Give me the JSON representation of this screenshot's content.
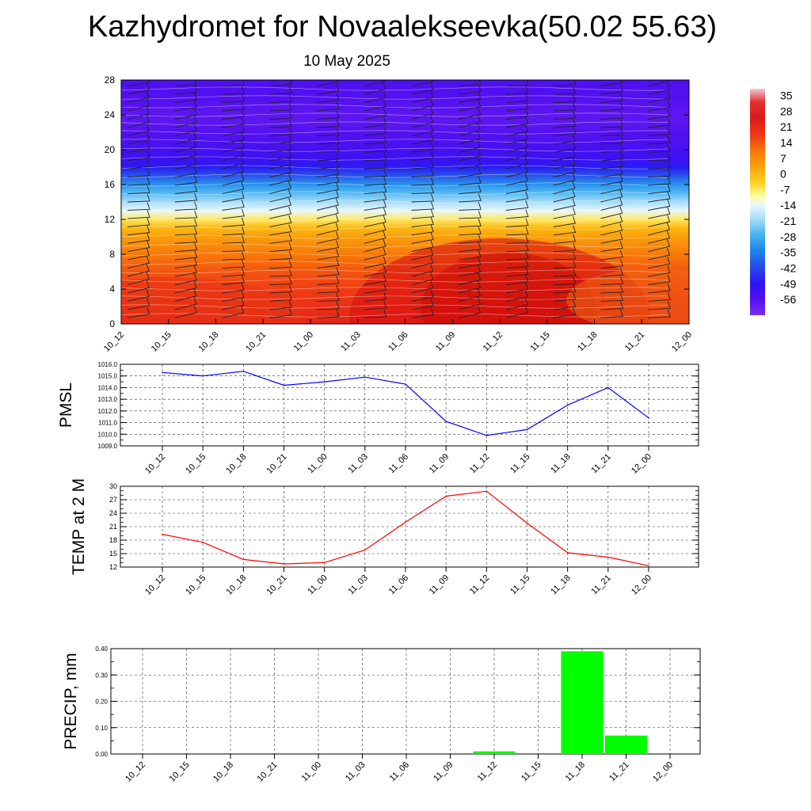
{
  "header": {
    "title": "Kazhydromet for Novaalekseevka(50.02 55.63)",
    "date": "10 May 2025"
  },
  "colors": {
    "pmsl_line": "#0000ff",
    "temp_line": "#ff0000",
    "precip_bar": "#00ff00",
    "grid": "#000000"
  },
  "chart_data": [
    {
      "id": "cross-section",
      "type": "heatmap",
      "title": "",
      "x": [
        "10_12",
        "10_15",
        "10_18",
        "10_21",
        "11_00",
        "11_03",
        "11_06",
        "11_09",
        "11_12",
        "11_15",
        "11_18",
        "11_21",
        "12_00"
      ],
      "ylim": [
        0,
        28
      ],
      "yticks": [
        0,
        4,
        8,
        12,
        16,
        20,
        24,
        28
      ],
      "colorbar_labels": [
        35,
        28,
        21,
        14,
        7,
        0,
        -7,
        -14,
        -21,
        -28,
        -35,
        -42,
        -49,
        -56
      ],
      "colorbar_range": [
        -63,
        38
      ],
      "colorbar_stops": [
        {
          "value": 38,
          "color": "#f0c8d8"
        },
        {
          "value": 32,
          "color": "#e43030"
        },
        {
          "value": 25,
          "color": "#d81a1a"
        },
        {
          "value": 17,
          "color": "#f03a14"
        },
        {
          "value": 10,
          "color": "#f87a0a"
        },
        {
          "value": 3,
          "color": "#fba40c"
        },
        {
          "value": -4,
          "color": "#fcd21e"
        },
        {
          "value": -10,
          "color": "#fefca8"
        },
        {
          "value": -14,
          "color": "#e9f7fc"
        },
        {
          "value": -20,
          "color": "#a8dcf8"
        },
        {
          "value": -27,
          "color": "#48b4f2"
        },
        {
          "value": -34,
          "color": "#1c86ea"
        },
        {
          "value": -41,
          "color": "#2a4cea"
        },
        {
          "value": -49,
          "color": "#2a14f4"
        },
        {
          "value": -56,
          "color": "#5410f0"
        },
        {
          "value": -63,
          "color": "#7a2cf0"
        }
      ]
    },
    {
      "id": "pmsl",
      "type": "line",
      "ylabel": "PMSL",
      "categories": [
        "10_12",
        "10_15",
        "10_18",
        "10_21",
        "11_00",
        "11_03",
        "11_06",
        "11_09",
        "11_12",
        "11_15",
        "11_18",
        "11_21",
        "12_00"
      ],
      "values": [
        1015.3,
        1015.0,
        1015.4,
        1014.2,
        1014.5,
        1014.9,
        1014.3,
        1011.1,
        1009.9,
        1010.4,
        1012.5,
        1014.0,
        1011.4
      ],
      "ylim": [
        1009.0,
        1016.0
      ],
      "yticks": [
        "1009.0",
        "1010.0",
        "1011.0",
        "1012.0",
        "1013.0",
        "1014.0",
        "1015.0",
        "1016.0"
      ],
      "grid": true
    },
    {
      "id": "temp",
      "type": "line",
      "ylabel": "TEMP at 2 M",
      "categories": [
        "10_12",
        "10_15",
        "10_18",
        "10_21",
        "11_00",
        "11_03",
        "11_06",
        "11_09",
        "11_12",
        "11_15",
        "11_18",
        "11_21",
        "12_00"
      ],
      "values": [
        19.3,
        17.5,
        13.7,
        12.7,
        13.0,
        15.8,
        22.0,
        27.8,
        28.9,
        21.8,
        15.2,
        14.2,
        12.3
      ],
      "ylim": [
        12,
        30
      ],
      "yticks": [
        "12",
        "15",
        "18",
        "21",
        "24",
        "27",
        "30"
      ],
      "grid": true
    },
    {
      "id": "precip",
      "type": "bar",
      "ylabel": "PRECIP, mm",
      "categories": [
        "10_12",
        "10_15",
        "10_18",
        "10_21",
        "11_00",
        "11_03",
        "11_06",
        "11_09",
        "11_12",
        "11_15",
        "11_18",
        "11_21",
        "12_00"
      ],
      "values": [
        0,
        0,
        0,
        0,
        0,
        0,
        0,
        0,
        0.01,
        0,
        0.39,
        0.07,
        0
      ],
      "ylim": [
        0,
        0.4
      ],
      "yticks": [
        "0.00",
        "0.10",
        "0.20",
        "0.30",
        "0.40"
      ],
      "grid": true
    }
  ]
}
